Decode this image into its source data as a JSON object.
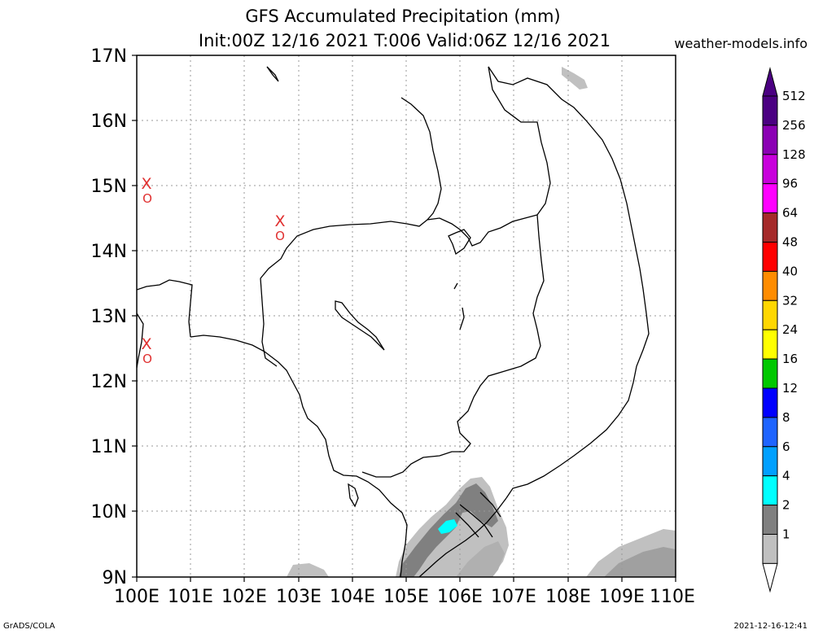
{
  "title": {
    "line1": "GFS Accumulated Precipitation (mm)",
    "line2": "Init:00Z 12/16 2021 T:006 Valid:06Z 12/16 2021"
  },
  "site": "weather-models.info",
  "footer": {
    "left": "GrADS/COLA",
    "right": "2021-12-16-12:41"
  },
  "axes": {
    "lat_labels": [
      "17N",
      "16N",
      "15N",
      "14N",
      "13N",
      "12N",
      "11N",
      "10N",
      "9N"
    ],
    "lon_labels": [
      "100E",
      "101E",
      "102E",
      "103E",
      "104E",
      "105E",
      "106E",
      "107E",
      "108E",
      "109E",
      "110E"
    ],
    "grid": true
  },
  "legend": {
    "levels": [
      {
        "label": "512",
        "color": "#4b0082"
      },
      {
        "label": "256",
        "color": "#8b00b4"
      },
      {
        "label": "128",
        "color": "#c800dc"
      },
      {
        "label": "96",
        "color": "#ff00ff"
      },
      {
        "label": "64",
        "color": "#a52a2a"
      },
      {
        "label": "48",
        "color": "#ff0000"
      },
      {
        "label": "40",
        "color": "#ff8c00"
      },
      {
        "label": "32",
        "color": "#ffd700"
      },
      {
        "label": "24",
        "color": "#ffff00"
      },
      {
        "label": "16",
        "color": "#00c800"
      },
      {
        "label": "12",
        "color": "#0000ff"
      },
      {
        "label": "8",
        "color": "#1e64ff"
      },
      {
        "label": "6",
        "color": "#00a0ff"
      },
      {
        "label": "4",
        "color": "#00ffff"
      },
      {
        "label": "2",
        "color": "#808080"
      },
      {
        "label": "1",
        "color": "#c0c0c0"
      }
    ]
  },
  "markers": [
    {
      "symbol_x": "X",
      "symbol_o": "O",
      "lon": 100.2,
      "lat": 15.0
    },
    {
      "symbol_x": "X",
      "symbol_o": "O",
      "lon": 102.7,
      "lat": 14.4
    },
    {
      "symbol_x": "X",
      "symbol_o": "O",
      "lon": 100.2,
      "lat": 12.5
    }
  ]
}
